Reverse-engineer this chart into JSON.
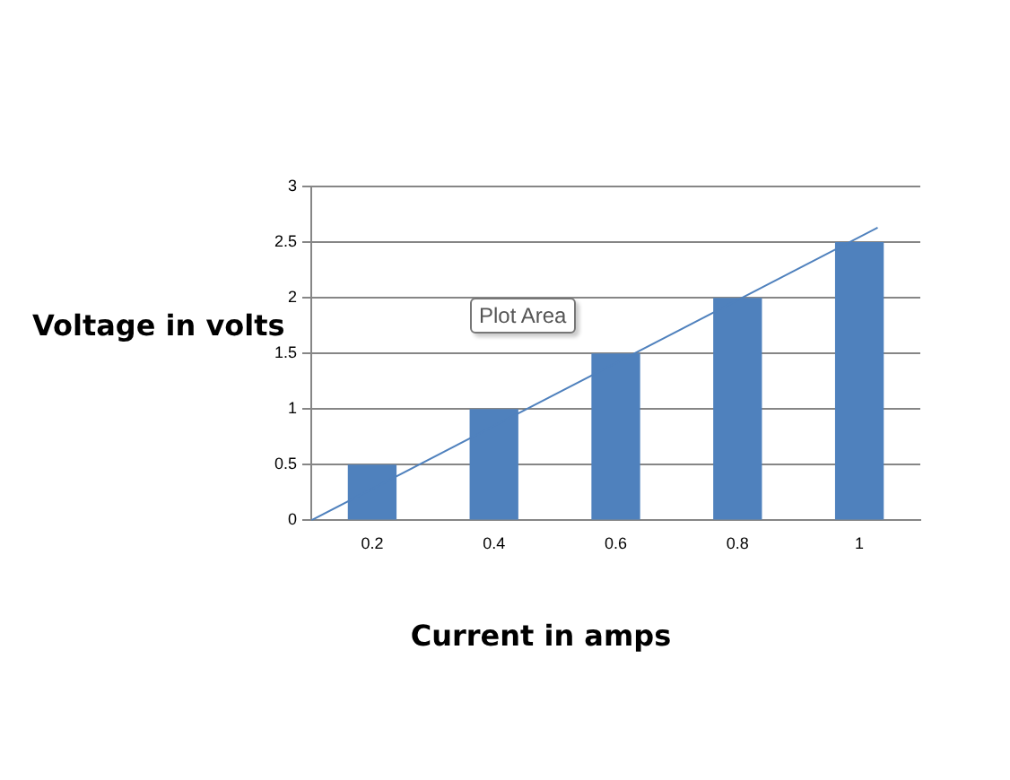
{
  "chart_data": {
    "type": "bar",
    "xlabel": "Current in amps",
    "ylabel": "Voltage in volts",
    "x": [
      0.2,
      0.4,
      0.6,
      0.8,
      1
    ],
    "xlim": [
      0.1,
      1.1
    ],
    "xticks": [
      0.2,
      0.4,
      0.6,
      0.8,
      1
    ],
    "series": [
      {
        "color": "#4f81bd",
        "values": [
          0.5,
          1,
          1.5,
          2,
          2.5
        ]
      },
      {
        "type": "line",
        "color": "#4f81bd",
        "x": [
          0.1,
          1.03
        ],
        "values": [
          0,
          2.63
        ]
      }
    ],
    "ylim": [
      0,
      3
    ],
    "yticks": [
      0,
      0.5,
      1,
      1.5,
      2,
      2.5,
      3
    ],
    "grid": "y",
    "annotations": [
      "Plot Area"
    ]
  }
}
